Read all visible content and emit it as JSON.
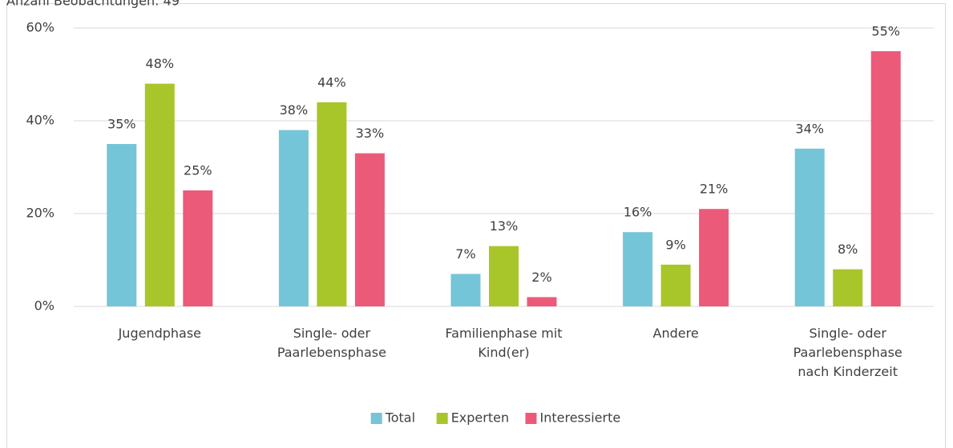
{
  "chart_data": {
    "type": "bar",
    "note": "Anzahl Beobachtungen: 49",
    "categories": [
      [
        "Jugendphase"
      ],
      [
        "Single- oder",
        "Paarlebensphase"
      ],
      [
        "Familienphase mit",
        "Kind(er)"
      ],
      [
        "Andere"
      ],
      [
        "Single- oder",
        "Paarlebensphase",
        "nach Kinderzeit"
      ]
    ],
    "series": [
      {
        "name": "Total",
        "color": "#75c5d8",
        "values": [
          35,
          38,
          7,
          16,
          34
        ]
      },
      {
        "name": "Experten",
        "color": "#a8c62a",
        "values": [
          48,
          44,
          13,
          9,
          8
        ]
      },
      {
        "name": "Interessierte",
        "color": "#ec5a7a",
        "values": [
          25,
          33,
          2,
          21,
          55
        ]
      }
    ],
    "ylim": [
      0,
      60
    ],
    "yticks": [
      {
        "value": 0,
        "label": "0%"
      },
      {
        "value": 20,
        "label": "20%"
      },
      {
        "value": 40,
        "label": "40%"
      },
      {
        "value": 60,
        "label": "60%"
      }
    ],
    "value_labels": [
      [
        "35%",
        "38%",
        "7%",
        "16%",
        "34%"
      ],
      [
        "48%",
        "44%",
        "13%",
        "9%",
        "8%"
      ],
      [
        "25%",
        "33%",
        "2%",
        "21%",
        "55%"
      ]
    ],
    "grid": true,
    "legend": "bottom"
  }
}
